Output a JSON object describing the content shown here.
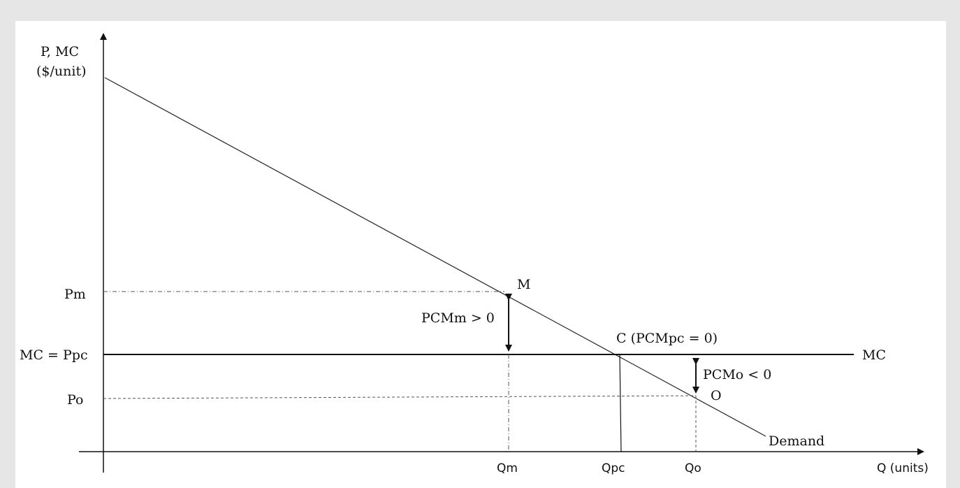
{
  "axes": {
    "y_label_line1": "P, MC",
    "y_label_line2": "($/unit)",
    "x_label": "Q (units)"
  },
  "price_labels": {
    "pm": "Pm",
    "mc_ppc": "MC = Ppc",
    "po": "Po"
  },
  "quantity_labels": {
    "qm": "Qm",
    "qpc": "Qpc",
    "qo": "Qo"
  },
  "point_labels": {
    "m": "M",
    "c": "C (PCMpc = 0)",
    "o": "O"
  },
  "curve_labels": {
    "mc": "MC",
    "demand": "Demand"
  },
  "annotations": {
    "pcm_m": "PCMm > 0",
    "pcm_o": "PCMo < 0"
  }
}
